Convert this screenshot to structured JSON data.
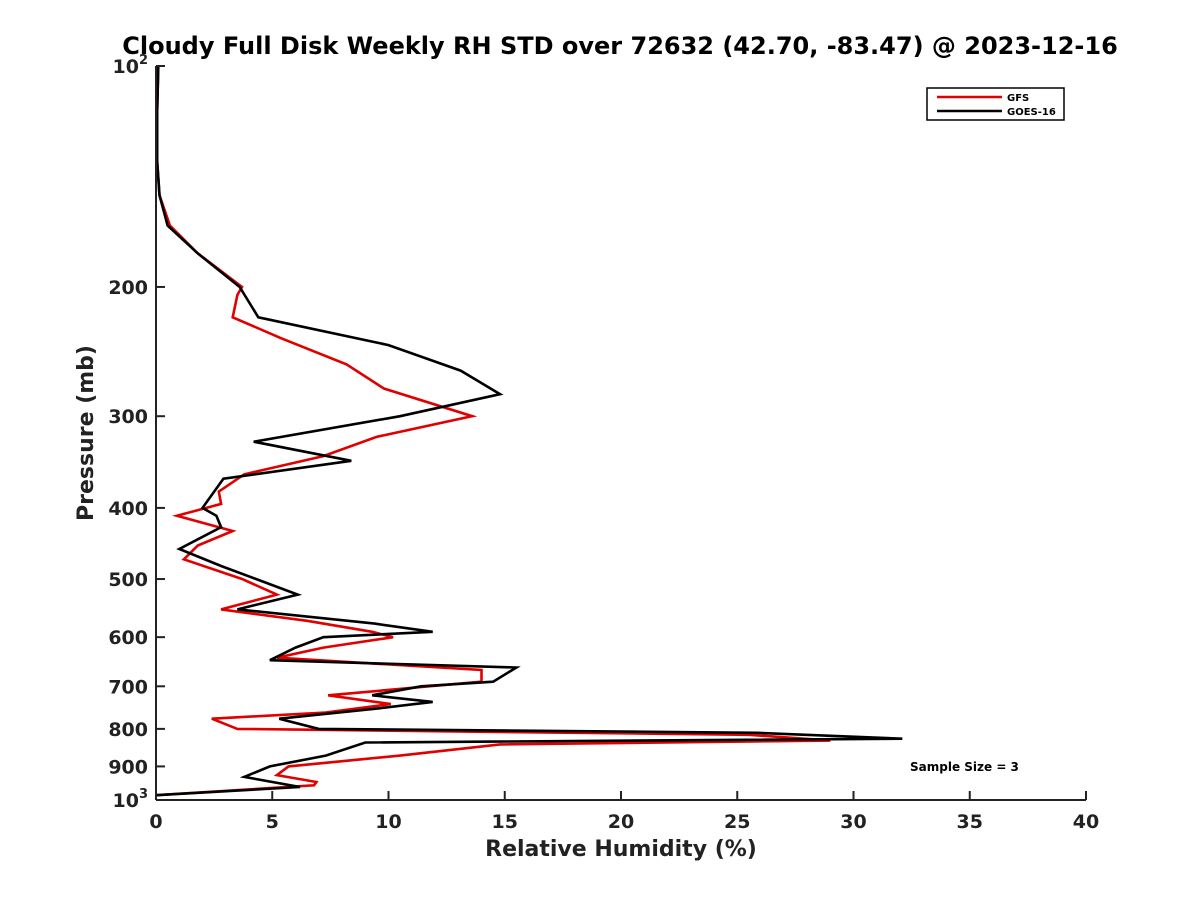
{
  "chart_data": {
    "type": "line",
    "title": "Cloudy Full Disk Weekly RH STD over 72632 (42.70, -83.47) @ 2023-12-16",
    "xlabel": "Relative Humidity (%)",
    "ylabel": "Pressure (mb)",
    "xlim": [
      0,
      40
    ],
    "ylim": [
      100,
      1000
    ],
    "y_scale": "log",
    "y_reversed": true,
    "x_ticks": [
      "0",
      "5",
      "10",
      "15",
      "20",
      "25",
      "30",
      "35",
      "40"
    ],
    "y_ticks": [
      {
        "value": 100,
        "base": "10",
        "exp": "2"
      },
      {
        "value": 200,
        "base": "200",
        "exp": ""
      },
      {
        "value": 300,
        "base": "300",
        "exp": ""
      },
      {
        "value": 400,
        "base": "400",
        "exp": ""
      },
      {
        "value": 500,
        "base": "500",
        "exp": ""
      },
      {
        "value": 600,
        "base": "600",
        "exp": ""
      },
      {
        "value": 700,
        "base": "700",
        "exp": ""
      },
      {
        "value": 800,
        "base": "800",
        "exp": ""
      },
      {
        "value": 900,
        "base": "900",
        "exp": ""
      },
      {
        "value": 1000,
        "base": "10",
        "exp": "3"
      }
    ],
    "grid": false,
    "legend_position": "top-right",
    "annotation": "Sample Size = 3",
    "series": [
      {
        "name": "GFS",
        "color": "#e00000",
        "points": [
          [
            0.1,
            100
          ],
          [
            0.05,
            115
          ],
          [
            0.05,
            135
          ],
          [
            0.15,
            150
          ],
          [
            0.6,
            165
          ],
          [
            1.8,
            180
          ],
          [
            3.7,
            200
          ],
          [
            3.5,
            205
          ],
          [
            3.3,
            220
          ],
          [
            5.4,
            235
          ],
          [
            8.2,
            255
          ],
          [
            9.8,
            275
          ],
          [
            13.6,
            300
          ],
          [
            9.5,
            320
          ],
          [
            7.2,
            340
          ],
          [
            3.8,
            360
          ],
          [
            2.7,
            380
          ],
          [
            2.8,
            395
          ],
          [
            0.9,
            410
          ],
          [
            3.3,
            430
          ],
          [
            1.8,
            450
          ],
          [
            1.2,
            470
          ],
          [
            3.7,
            500
          ],
          [
            5.2,
            525
          ],
          [
            2.8,
            550
          ],
          [
            6.5,
            570
          ],
          [
            9.3,
            590
          ],
          [
            10.2,
            600
          ],
          [
            7.2,
            620
          ],
          [
            5.2,
            640
          ],
          [
            14.0,
            665
          ],
          [
            14.0,
            690
          ],
          [
            7.4,
            720
          ],
          [
            10.1,
            740
          ],
          [
            7.3,
            760
          ],
          [
            2.4,
            775
          ],
          [
            3.5,
            800
          ],
          [
            25.5,
            815
          ],
          [
            29.0,
            830
          ],
          [
            14.8,
            840
          ],
          [
            10.5,
            870
          ],
          [
            5.7,
            900
          ],
          [
            5.2,
            925
          ],
          [
            6.9,
            945
          ],
          [
            6.8,
            955
          ],
          [
            0,
            985
          ]
        ]
      },
      {
        "name": "GOES-16",
        "color": "#000000",
        "points": [
          [
            0.1,
            100
          ],
          [
            0.05,
            115
          ],
          [
            0.05,
            135
          ],
          [
            0.15,
            150
          ],
          [
            0.5,
            165
          ],
          [
            1.8,
            180
          ],
          [
            3.6,
            200
          ],
          [
            4.4,
            220
          ],
          [
            10.0,
            240
          ],
          [
            13.1,
            260
          ],
          [
            14.8,
            280
          ],
          [
            10.5,
            300
          ],
          [
            4.2,
            325
          ],
          [
            8.4,
            345
          ],
          [
            2.9,
            365
          ],
          [
            2.0,
            400
          ],
          [
            2.6,
            410
          ],
          [
            2.8,
            425
          ],
          [
            1.0,
            455
          ],
          [
            2.8,
            480
          ],
          [
            4.3,
            500
          ],
          [
            6.1,
            525
          ],
          [
            3.5,
            550
          ],
          [
            9.4,
            575
          ],
          [
            11.9,
            590
          ],
          [
            7.2,
            600
          ],
          [
            6.0,
            620
          ],
          [
            4.9,
            645
          ],
          [
            15.5,
            660
          ],
          [
            14.5,
            690
          ],
          [
            11.4,
            700
          ],
          [
            9.3,
            720
          ],
          [
            11.9,
            735
          ],
          [
            9.6,
            750
          ],
          [
            5.3,
            775
          ],
          [
            7.0,
            800
          ],
          [
            25.8,
            810
          ],
          [
            32.1,
            825
          ],
          [
            9.0,
            835
          ],
          [
            7.3,
            870
          ],
          [
            4.9,
            900
          ],
          [
            3.8,
            930
          ],
          [
            6.2,
            960
          ],
          [
            0,
            985
          ]
        ]
      }
    ]
  }
}
